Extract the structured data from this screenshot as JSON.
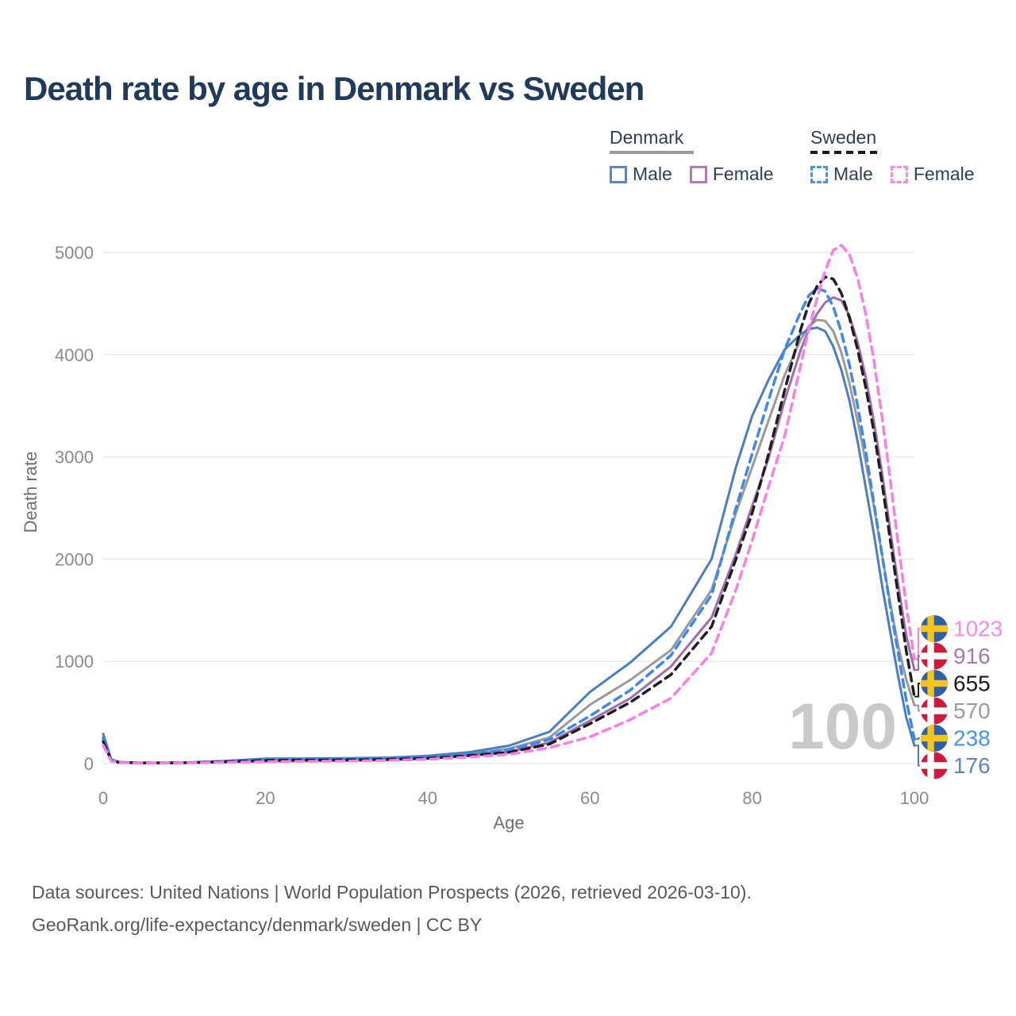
{
  "title": "Death rate by age in Denmark vs Sweden",
  "legend": {
    "groups": [
      {
        "label": "Denmark",
        "line_style": "solid",
        "line_color": "#9a9a9a",
        "items": [
          {
            "label": "Male",
            "color": "#5b87c5",
            "dashed": false
          },
          {
            "label": "Female",
            "color": "#b37ab8",
            "dashed": false
          }
        ]
      },
      {
        "label": "Sweden",
        "line_style": "dashed",
        "line_color": "#1a1a1a",
        "items": [
          {
            "label": "Male",
            "color": "#4d90f0",
            "dashed": true
          },
          {
            "label": "Female",
            "color": "#f98ae9",
            "dashed": true
          }
        ]
      }
    ]
  },
  "chart_data": {
    "type": "line",
    "title": "Death rate by age in Denmark vs Sweden",
    "xlabel": "Age",
    "ylabel": "Death rate",
    "xlim": [
      0,
      100
    ],
    "ylim": [
      0,
      5000
    ],
    "x_ticks": [
      0,
      20,
      40,
      60,
      80,
      100
    ],
    "y_ticks": [
      0,
      1000,
      2000,
      3000,
      4000,
      5000
    ],
    "grid": true,
    "legend_position": "top-right",
    "age_counter": "100",
    "x": [
      0,
      1,
      2,
      5,
      10,
      15,
      20,
      25,
      30,
      35,
      40,
      45,
      50,
      55,
      60,
      65,
      70,
      75,
      78,
      80,
      82,
      84,
      86,
      87,
      88,
      89,
      90,
      91,
      92,
      93,
      94,
      95,
      96,
      97,
      98,
      99,
      100
    ],
    "series": [
      {
        "name": "Denmark Total",
        "country": "denmark",
        "sex": "all",
        "dashed": false,
        "color": "#9a9a9a",
        "end_value": 570,
        "end_label": "570",
        "end_label_color": "#9a9a9a",
        "values": [
          260,
          35,
          13,
          7,
          9,
          20,
          36,
          38,
          40,
          46,
          60,
          90,
          145,
          255,
          575,
          820,
          1110,
          1700,
          2450,
          2900,
          3350,
          3800,
          4150,
          4280,
          4340,
          4330,
          4230,
          4020,
          3720,
          3350,
          2950,
          2520,
          2050,
          1580,
          1150,
          820,
          570
        ]
      },
      {
        "name": "Denmark Male",
        "country": "denmark",
        "sex": "male",
        "dashed": false,
        "color": "#4a7dc4",
        "end_value": 176,
        "end_label": "176",
        "end_label_color": "#5b84c0",
        "values": [
          290,
          40,
          15,
          8,
          10,
          25,
          48,
          50,
          52,
          58,
          75,
          110,
          175,
          310,
          700,
          990,
          1340,
          2000,
          2900,
          3400,
          3750,
          4050,
          4200,
          4250,
          4265,
          4230,
          4080,
          3850,
          3550,
          3150,
          2700,
          2250,
          1750,
          1300,
          850,
          450,
          176
        ]
      },
      {
        "name": "Denmark Female",
        "country": "denmark",
        "sex": "female",
        "dashed": false,
        "color": "#9f6cae",
        "end_value": 916,
        "end_label": "916",
        "end_label_color": "#a878ad",
        "values": [
          230,
          30,
          12,
          6,
          8,
          15,
          22,
          25,
          28,
          34,
          48,
          75,
          115,
          205,
          420,
          640,
          950,
          1430,
          2050,
          2520,
          2980,
          3550,
          4050,
          4250,
          4400,
          4510,
          4560,
          4530,
          4380,
          4120,
          3780,
          3350,
          2850,
          2300,
          1750,
          1250,
          916
        ]
      },
      {
        "name": "Sweden Male",
        "country": "sweden",
        "sex": "male",
        "dashed": true,
        "color": "#3d87f0",
        "end_value": 238,
        "end_label": "238",
        "end_label_color": "#4590f2",
        "values": [
          250,
          32,
          13,
          7,
          9,
          22,
          42,
          45,
          47,
          52,
          62,
          92,
          135,
          235,
          465,
          720,
          1060,
          1650,
          2500,
          3030,
          3550,
          4050,
          4420,
          4580,
          4650,
          4620,
          4470,
          4220,
          3900,
          3500,
          3050,
          2550,
          2050,
          1550,
          1080,
          620,
          238
        ]
      },
      {
        "name": "Sweden Total",
        "country": "sweden",
        "sex": "all",
        "dashed": true,
        "color": "#1f1f1f",
        "end_value": 655,
        "end_label": "655",
        "end_label_color": "#1a1a1a",
        "values": [
          215,
          28,
          11,
          6,
          8,
          17,
          31,
          34,
          36,
          41,
          52,
          78,
          110,
          190,
          390,
          600,
          870,
          1340,
          2000,
          2450,
          3020,
          3650,
          4250,
          4500,
          4670,
          4760,
          4740,
          4600,
          4360,
          4050,
          3680,
          3250,
          2750,
          2200,
          1650,
          1100,
          655
        ]
      },
      {
        "name": "Sweden Female",
        "country": "sweden",
        "sex": "female",
        "dashed": true,
        "color": "#fb7de6",
        "end_value": 1023,
        "end_label": "1023",
        "end_label_color": "#f58be7",
        "values": [
          180,
          25,
          10,
          5,
          7,
          12,
          19,
          22,
          25,
          30,
          42,
          62,
          90,
          155,
          260,
          430,
          640,
          1080,
          1700,
          2180,
          2700,
          3200,
          3900,
          4250,
          4550,
          4820,
          5020,
          5070,
          4980,
          4750,
          4400,
          3950,
          3400,
          2800,
          2150,
          1550,
          1023
        ]
      }
    ]
  },
  "flags": {
    "denmark": {
      "base": "#d01a3c",
      "cross": "#ffffff"
    },
    "sweden": {
      "base": "#2e5fa7",
      "cross": "#f5c51d"
    }
  },
  "footer": {
    "line1": "Data sources: United Nations | World Population Prospects (2026, retrieved 2026-03-10).",
    "line2": "GeoRank.org/life-expectancy/denmark/sweden | CC BY"
  }
}
